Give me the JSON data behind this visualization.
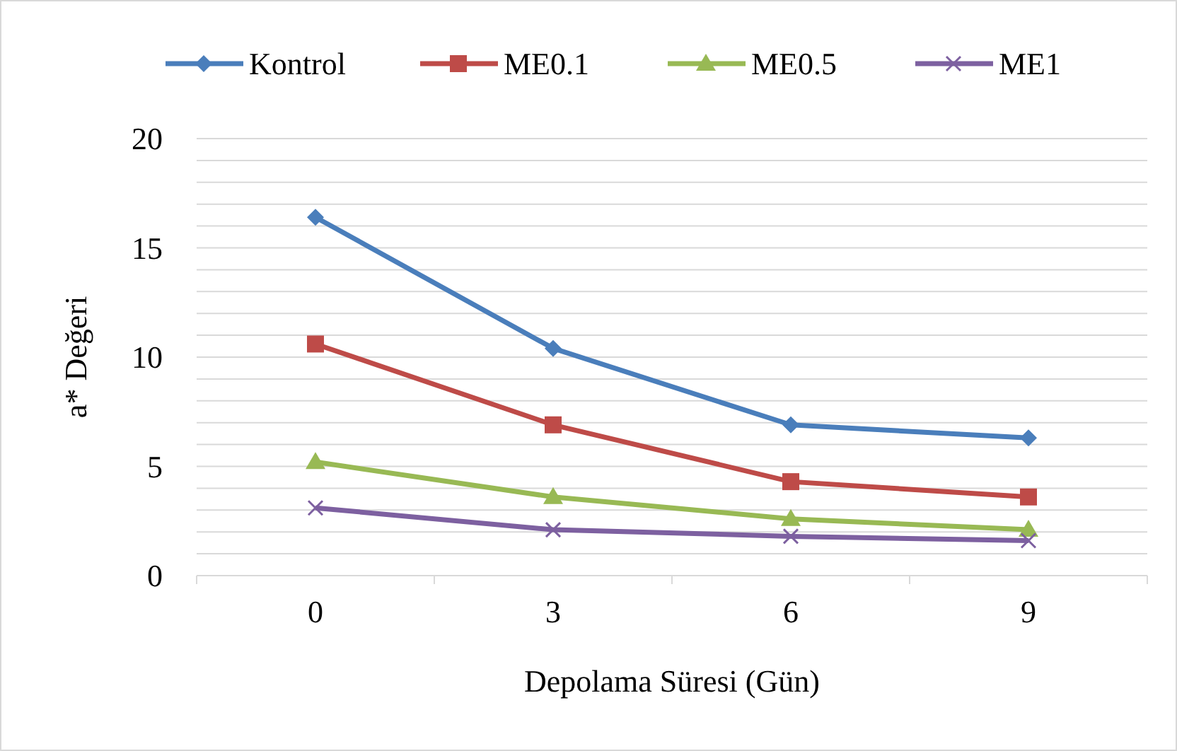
{
  "chart_data": {
    "type": "line",
    "xlabel": "Depolama Süresi (Gün)",
    "ylabel": "a* Değeri",
    "categories": [
      "0",
      "3",
      "6",
      "9"
    ],
    "ylim": [
      0,
      20
    ],
    "yticks": [
      0,
      {
        "value": 1,
        "label": null
      },
      {
        "value": 2,
        "label": null
      },
      {
        "value": 3,
        "label": null
      },
      {
        "value": 4,
        "label": null
      },
      5,
      {
        "value": 6,
        "label": null
      },
      {
        "value": 7,
        "label": null
      },
      {
        "value": 8,
        "label": null
      },
      {
        "value": 9,
        "label": null
      },
      10,
      {
        "value": 11,
        "label": null
      },
      {
        "value": 12,
        "label": null
      },
      {
        "value": 13,
        "label": null
      },
      {
        "value": 14,
        "label": null
      },
      15,
      {
        "value": 16,
        "label": null
      },
      {
        "value": 17,
        "label": null
      },
      {
        "value": 18,
        "label": null
      },
      {
        "value": 19,
        "label": null
      },
      20
    ],
    "grid": "y",
    "legend": "top",
    "line_style": "solid",
    "series": [
      {
        "name": "Kontrol",
        "color": "#4a7ebb",
        "marker": "diamond",
        "values": [
          16.4,
          10.4,
          6.9,
          6.3
        ]
      },
      {
        "name": "ME0.1",
        "color": "#be4b48",
        "marker": "square",
        "values": [
          10.6,
          6.9,
          4.3,
          3.6
        ]
      },
      {
        "name": "ME0.5",
        "color": "#98b954",
        "marker": "triangle",
        "values": [
          5.2,
          3.6,
          2.6,
          2.1
        ]
      },
      {
        "name": "ME1",
        "color": "#7d60a0",
        "marker": "cross",
        "values": [
          3.1,
          2.1,
          1.8,
          1.6
        ]
      }
    ]
  }
}
